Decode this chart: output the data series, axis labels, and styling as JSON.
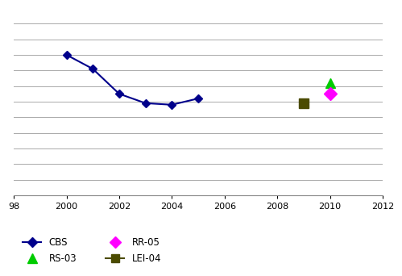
{
  "cbs_x": [
    2000,
    2001,
    2002,
    2003,
    2004,
    2005
  ],
  "cbs_y": [
    100,
    95.5,
    87.5,
    84.5,
    84.0,
    86.0
  ],
  "rs03_x": [
    2010
  ],
  "rs03_y": [
    91.0
  ],
  "rr05_x": [
    2010
  ],
  "rr05_y": [
    87.5
  ],
  "lei04_x": [
    2009
  ],
  "lei04_y": [
    84.5
  ],
  "cbs_color": "#00008B",
  "rs03_color": "#00CC00",
  "rr05_color": "#FF00FF",
  "lei04_color": "#4B4B00",
  "xlim": [
    1998,
    2012
  ],
  "ylim": [
    55,
    115
  ],
  "xticks": [
    1998,
    2000,
    2002,
    2004,
    2006,
    2008,
    2010,
    2012
  ],
  "xtick_labels": [
    "98",
    "2000",
    "2002",
    "2004",
    "2006",
    "2008",
    "2010",
    "2012"
  ],
  "y_gridlines": [
    60,
    65,
    70,
    75,
    80,
    85,
    90,
    95,
    100,
    105,
    110
  ],
  "background_color": "#ffffff",
  "grid_color": "#aaaaaa"
}
